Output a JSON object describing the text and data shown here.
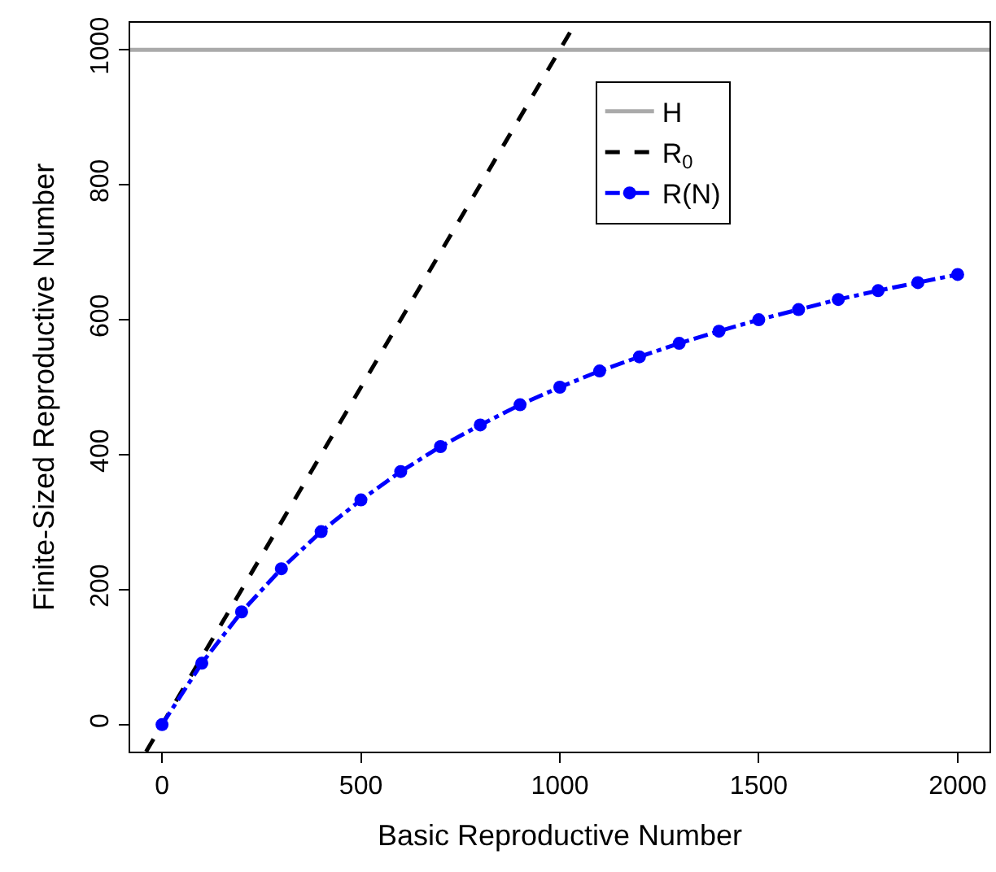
{
  "chart_data": {
    "type": "line",
    "xlabel": "Basic Reproductive Number",
    "ylabel": "Finite-Sized Reproductive Number",
    "xlim": [
      -80,
      2080
    ],
    "ylim": [
      -40,
      1040
    ],
    "xticks": [
      0,
      500,
      1000,
      1500,
      2000
    ],
    "yticks": [
      0,
      200,
      400,
      600,
      800,
      1000
    ],
    "legend": "top right",
    "series": [
      {
        "name": "H",
        "color": "#aaaaaa",
        "x": [
          -80,
          2080
        ],
        "values": [
          1000,
          1000
        ],
        "line_style": "solid",
        "marker": "none"
      },
      {
        "name": "R$_{0}$",
        "color": "#000000",
        "x": [
          -40,
          1040
        ],
        "values": [
          -40,
          1040
        ],
        "line_style": "dashed",
        "marker": "none"
      },
      {
        "name": "R(N)",
        "color": "#0000ff",
        "x": [
          0,
          100,
          200,
          300,
          400,
          500,
          600,
          700,
          800,
          900,
          1000,
          1100,
          1200,
          1300,
          1400,
          1500,
          1600,
          1700,
          1800,
          1900,
          2000
        ],
        "values": [
          0,
          91,
          167,
          231,
          286,
          333,
          375,
          412,
          444,
          474,
          500,
          524,
          545,
          565,
          583,
          600,
          615,
          630,
          643,
          655,
          667
        ],
        "line_style": "dashdot",
        "marker": "circle"
      }
    ]
  }
}
